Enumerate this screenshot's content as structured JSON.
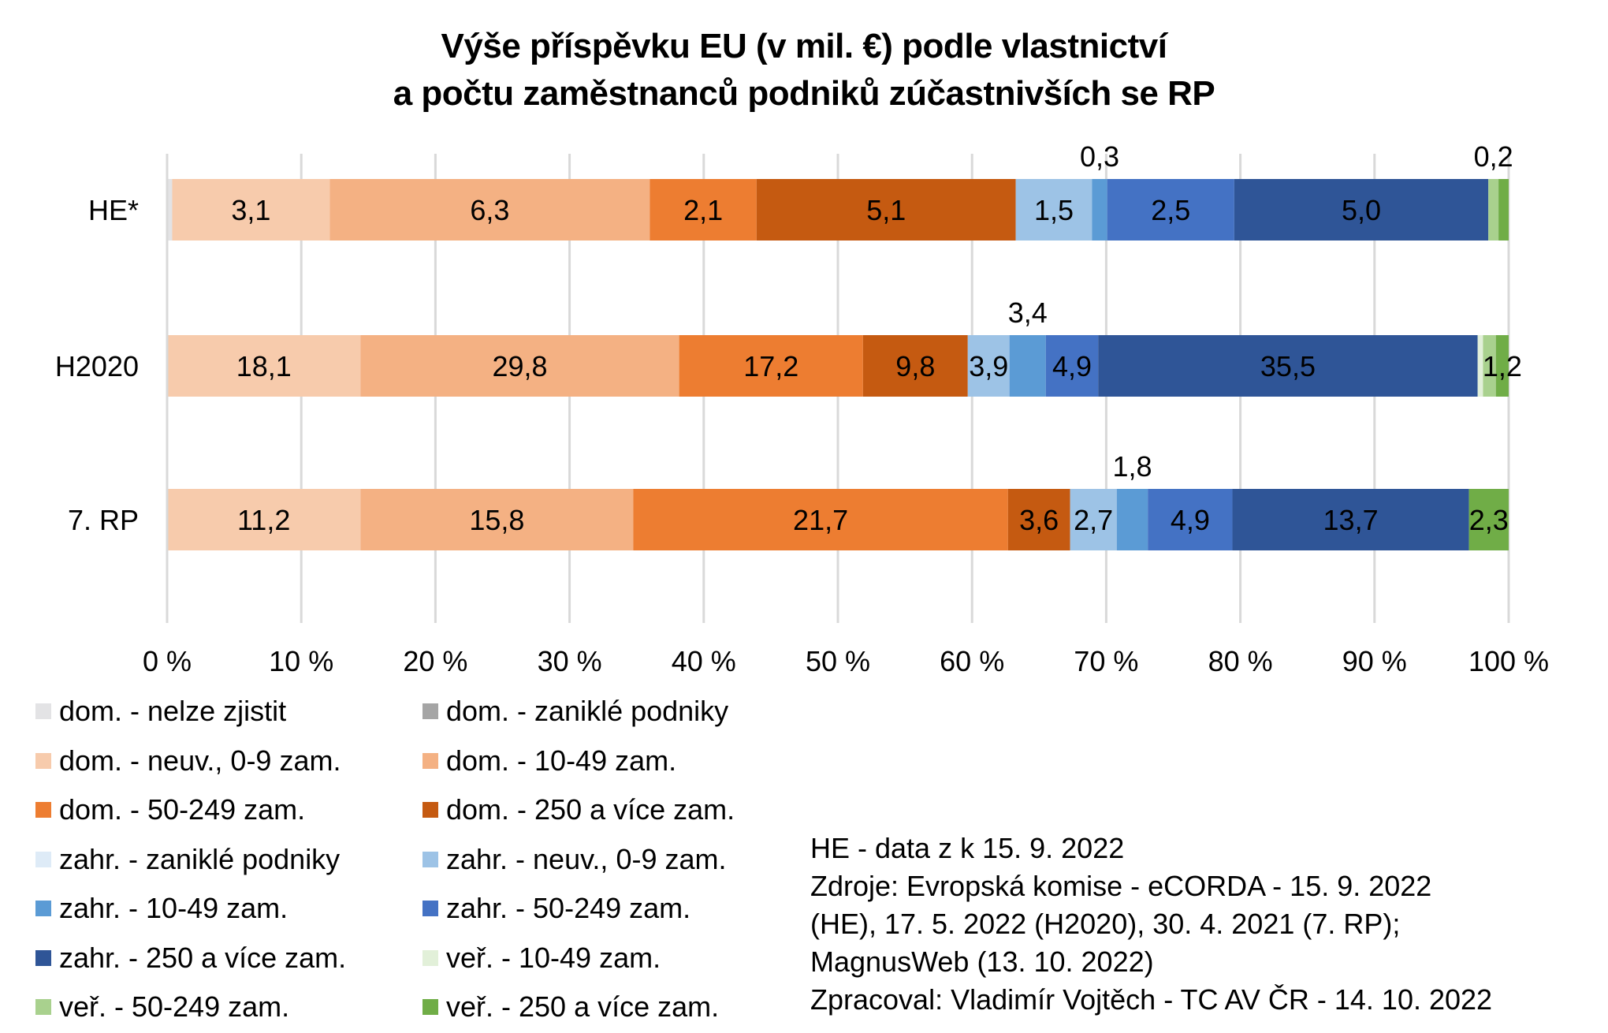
{
  "chart_data": {
    "type": "bar",
    "orientation": "horizontal",
    "stacked": "percent",
    "title": "Výše příspěvku EU (v mil. €) podle vlastnictví a počtu zaměstnanců podniků zúčastnivších se RP",
    "title_lines": [
      "Výše příspěvku EU (v mil. €) podle vlastnictví",
      "a počtu zaměstnanců podniků zúčastnivších se RP"
    ],
    "xlabel": "",
    "ylabel": "",
    "xlim": [
      0,
      100
    ],
    "x_ticks": [
      "0 %",
      "10 %",
      "20 %",
      "30 %",
      "40 %",
      "50 %",
      "60 %",
      "70 %",
      "80 %",
      "90 %",
      "100 %"
    ],
    "grid": true,
    "legend_position": "bottom-left",
    "categories": [
      "HE*",
      "H2020",
      "7. RP"
    ],
    "series": [
      {
        "name": "dom. - nelze zjistit",
        "color": "#e3e3e5",
        "values": [
          0.1,
          0,
          0
        ],
        "labels": [
          "",
          "",
          ""
        ]
      },
      {
        "name": "dom. - zaniklé podniky",
        "color": "#a5a5a5",
        "values": [
          0,
          0,
          0
        ],
        "labels": [
          "",
          "",
          ""
        ]
      },
      {
        "name": "dom. - neuv., 0-9 zam.",
        "color": "#f7cbac",
        "values": [
          3.1,
          18.1,
          11.2
        ],
        "labels": [
          "3,1",
          "18,1",
          "11,2"
        ]
      },
      {
        "name": "dom. - 10-49 zam.",
        "color": "#f4b183",
        "values": [
          6.3,
          29.8,
          15.8
        ],
        "labels": [
          "6,3",
          "29,8",
          "15,8"
        ]
      },
      {
        "name": "dom. - 50-249 zam.",
        "color": "#ed7d31",
        "values": [
          2.1,
          17.2,
          21.7
        ],
        "labels": [
          "2,1",
          "17,2",
          "21,7"
        ]
      },
      {
        "name": "dom. - 250 a více zam.",
        "color": "#c55a11",
        "values": [
          5.1,
          9.8,
          3.6
        ],
        "labels": [
          "5,1",
          "9,8",
          "3,6"
        ]
      },
      {
        "name": "zahr. - zaniklé podniky",
        "color": "#deebf7",
        "values": [
          0,
          0,
          0
        ],
        "labels": [
          "",
          "",
          ""
        ]
      },
      {
        "name": "zahr. - neuv., 0-9 zam.",
        "color": "#9dc3e6",
        "values": [
          1.5,
          3.9,
          2.7
        ],
        "labels": [
          "1,5",
          "3,9",
          "2,7"
        ]
      },
      {
        "name": "zahr. - 10-49 zam.",
        "color": "#5b9bd5",
        "values": [
          0.3,
          3.4,
          1.8
        ],
        "labels": [
          "0,3",
          "3,4",
          "1,8"
        ],
        "label_above": true
      },
      {
        "name": "zahr. - 50-249 zam.",
        "color": "#4472c4",
        "values": [
          2.5,
          4.9,
          4.9
        ],
        "labels": [
          "2,5",
          "4,9",
          "4,9"
        ]
      },
      {
        "name": "zahr. - 250 a více zam.",
        "color": "#2f5597",
        "values": [
          5.0,
          35.5,
          13.7
        ],
        "labels": [
          "5,0",
          "35,5",
          "13,7"
        ]
      },
      {
        "name": "veř. - 10-49 zam.",
        "color": "#e2f0d9",
        "values": [
          0,
          0.5,
          0
        ],
        "labels": [
          "",
          "",
          ""
        ]
      },
      {
        "name": "veř. - 50-249 zam.",
        "color": "#a9d18e",
        "values": [
          0.2,
          1.2,
          0
        ],
        "labels": [
          "0,2",
          "",
          ""
        ],
        "label_above_first": true
      },
      {
        "name": "veř. - 250 a více zam.",
        "color": "#70ad47",
        "values": [
          0.2,
          1.2,
          2.3
        ],
        "labels": [
          "",
          "1,2",
          "2,3"
        ]
      }
    ]
  },
  "notes": [
    "HE - data z k 15. 9. 2022",
    "Zdroje: Evropská komise - eCORDA - 15. 9. 2022",
    "(HE), 17. 5. 2022 (H2020), 30. 4. 2021 (7. RP);",
    "MagnusWeb (13. 10. 2022)",
    "Zpracoval: Vladimír Vojtěch - TC AV ČR - 14. 10. 2022"
  ]
}
